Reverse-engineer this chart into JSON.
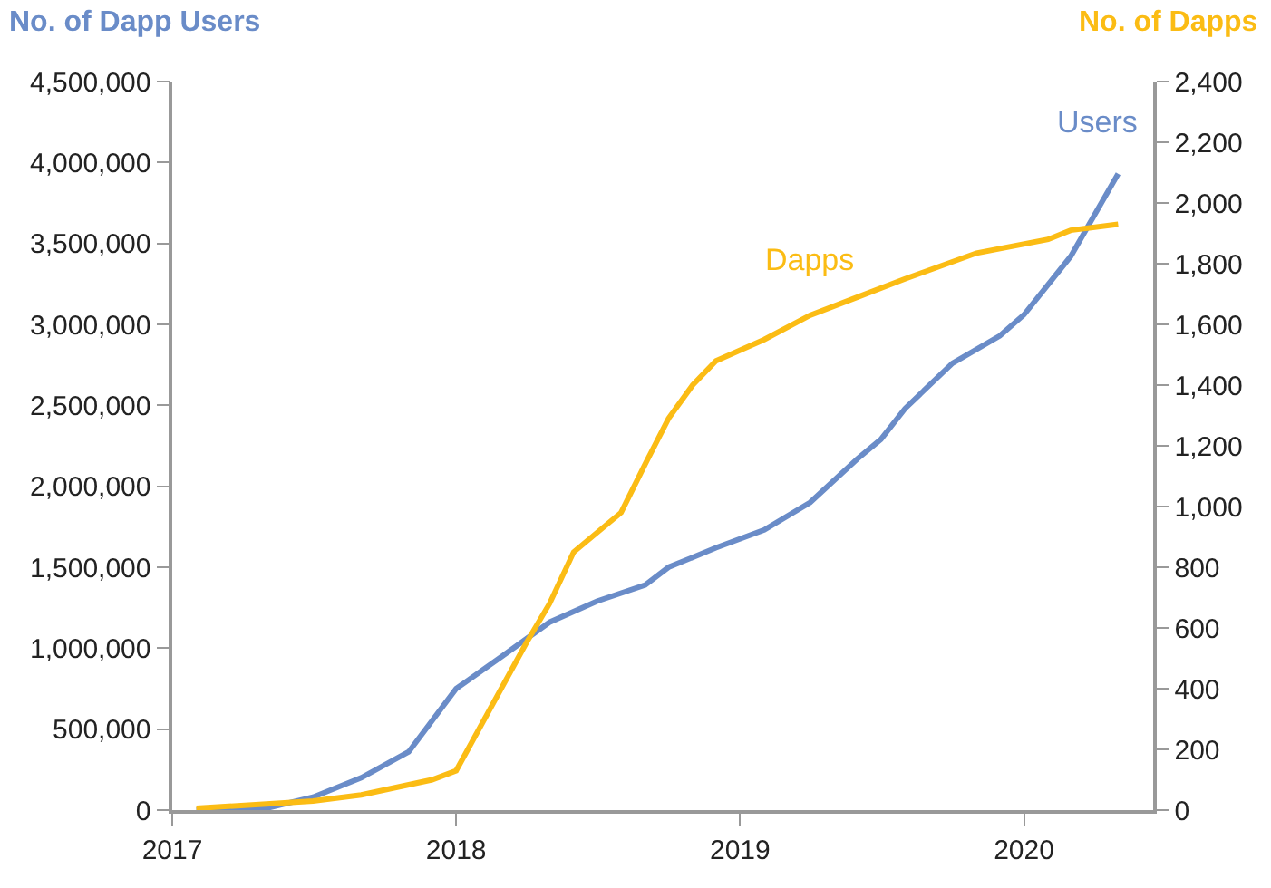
{
  "chart_data": {
    "type": "line",
    "ylabel": "No. of Dapp Users",
    "y2label": "No. of Dapps",
    "xlim": [
      "2017-01-01",
      "2020-06-15"
    ],
    "xticks": [
      "2017",
      "2018",
      "2019",
      "2020"
    ],
    "ylim": [
      0,
      4500000
    ],
    "yticks": [
      {
        "value": 0,
        "label": "0"
      },
      {
        "value": 500000,
        "label": "500,000"
      },
      {
        "value": 1000000,
        "label": "1,000,000"
      },
      {
        "value": 1500000,
        "label": "1,500,000"
      },
      {
        "value": 2000000,
        "label": "2,000,000"
      },
      {
        "value": 2500000,
        "label": "2,500,000"
      },
      {
        "value": 3000000,
        "label": "3,000,000"
      },
      {
        "value": 3500000,
        "label": "3,500,000"
      },
      {
        "value": 4000000,
        "label": "4,000,000"
      },
      {
        "value": 4500000,
        "label": "4,500,000"
      }
    ],
    "y2lim": [
      0,
      2400
    ],
    "y2ticks": [
      0,
      200,
      400,
      600,
      800,
      {
        "value": 1000,
        "label": "1,000"
      },
      {
        "value": 1200,
        "label": "1,200"
      },
      {
        "value": 1400,
        "label": "1,400"
      },
      {
        "value": 1600,
        "label": "1,600"
      },
      {
        "value": 1800,
        "label": "1,800"
      },
      {
        "value": 2000,
        "label": "2,000"
      },
      {
        "value": 2200,
        "label": "2,200"
      },
      {
        "value": 2400,
        "label": "2,400"
      }
    ],
    "legend": false,
    "marker": "none",
    "line_style": "solid",
    "series": [
      {
        "name": "Users",
        "color": "#6a8cc8",
        "axis": "y",
        "x": [
          "2017-02",
          "2017-05",
          "2017-07",
          "2017-09",
          "2017-11",
          "2018-01",
          "2018-03",
          "2018-05",
          "2018-07",
          "2018-09",
          "2018-10",
          "2018-12",
          "2019-02",
          "2019-04",
          "2019-06",
          "2019-07",
          "2019-08",
          "2019-10",
          "2019-12",
          "2020-01",
          "2020-03",
          "2020-05"
        ],
        "values": [
          0,
          10000,
          80000,
          200000,
          360000,
          750000,
          950000,
          1160000,
          1290000,
          1390000,
          1500000,
          1620000,
          1730000,
          1900000,
          2170000,
          2290000,
          2480000,
          2760000,
          2930000,
          3060000,
          3420000,
          3930000
        ]
      },
      {
        "name": "Dapps",
        "color": "#fbbc14",
        "axis": "y2",
        "x": [
          "2017-02",
          "2017-07",
          "2017-09",
          "2017-12",
          "2018-01",
          "2018-04",
          "2018-05",
          "2018-06",
          "2018-08",
          "2018-09",
          "2018-10",
          "2018-11",
          "2018-12",
          "2019-02",
          "2019-04",
          "2019-06",
          "2019-08",
          "2019-11",
          "2020-02",
          "2020-03",
          "2020-05"
        ],
        "values": [
          6,
          30,
          50,
          100,
          130,
          550,
          680,
          850,
          980,
          1140,
          1290,
          1400,
          1480,
          1550,
          1630,
          1690,
          1750,
          1835,
          1880,
          1910,
          1930
        ]
      }
    ]
  }
}
